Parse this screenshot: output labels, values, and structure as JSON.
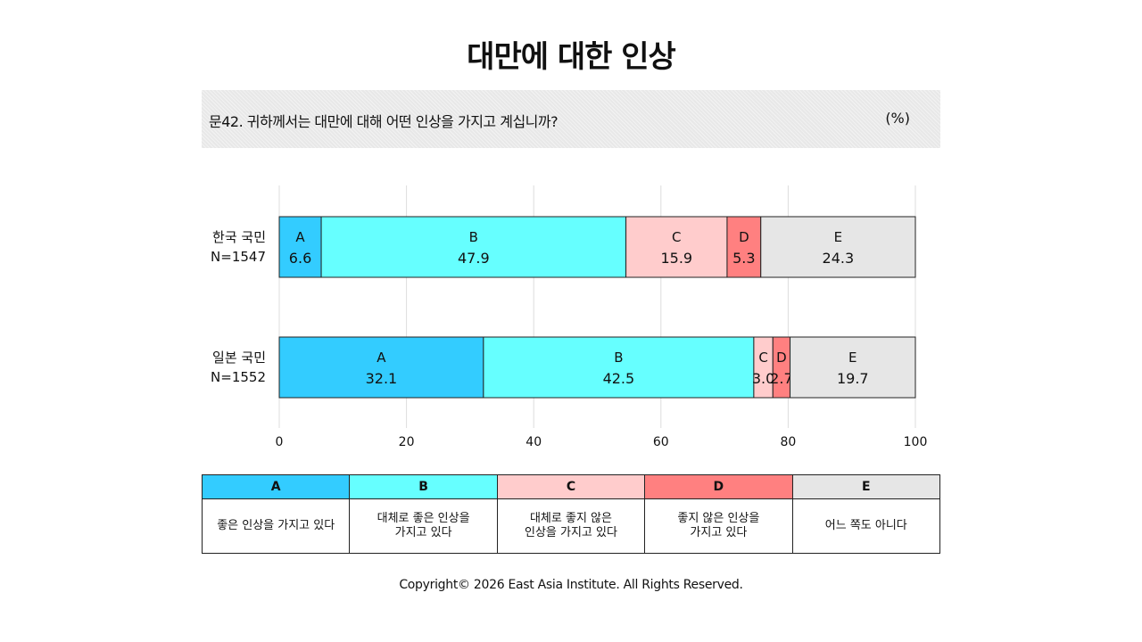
{
  "title": "대만에 대한 인상",
  "question": {
    "text": "문42. 귀하께서는 대만에 대해 어떤 인상을 가지고 계십니까?",
    "unit": "(%)"
  },
  "colors": {
    "A": "#33ccff",
    "B": "#66ffff",
    "C": "#ffcccc",
    "D": "#ff8080",
    "E": "#e6e6e6"
  },
  "chart_data": {
    "type": "bar",
    "orientation": "horizontal-stacked",
    "xlim": [
      0,
      100
    ],
    "x_ticks": [
      "0",
      "20",
      "40",
      "60",
      "80",
      "100"
    ],
    "grid": true,
    "categories": [
      {
        "label": "한국 국민",
        "n": "N=1547"
      },
      {
        "label": "일본 국민",
        "n": "N=1552"
      }
    ],
    "series": [
      {
        "name": "A",
        "values": [
          6.6,
          32.1
        ]
      },
      {
        "name": "B",
        "values": [
          47.9,
          42.5
        ]
      },
      {
        "name": "C",
        "values": [
          15.9,
          3.0
        ]
      },
      {
        "name": "D",
        "values": [
          5.3,
          2.7
        ]
      },
      {
        "name": "E",
        "values": [
          24.3,
          19.7
        ]
      }
    ]
  },
  "legend": {
    "keys": [
      "A",
      "B",
      "C",
      "D",
      "E"
    ],
    "descriptions": [
      "좋은 인상을 가지고 있다",
      "대체로 좋은 인상을\n가지고 있다",
      "대체로 좋지 않은\n인상을 가지고 있다",
      "좋지 않은 인상을\n가지고 있다",
      "어느 쪽도 아니다"
    ]
  },
  "footer": "Copyright© 2026 East Asia Institute. All Rights Reserved."
}
